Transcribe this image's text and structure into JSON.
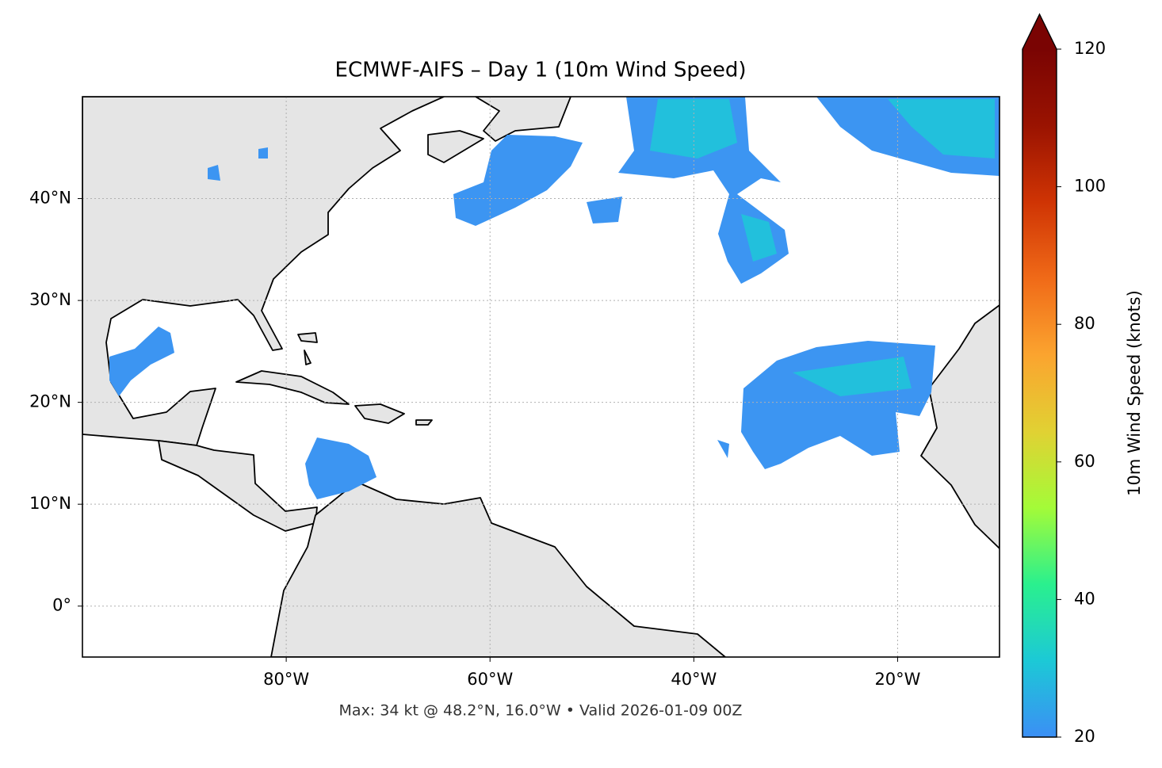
{
  "chart_data": {
    "type": "map",
    "title": "ECMWF-AIFS – Day 1 (10m Wind Speed)",
    "annotation": "Max: 34 kt @ 48.2°N, 16.0°W • Valid 2026-01-09 00Z",
    "xlim": [
      -100,
      -10
    ],
    "ylim": [
      -5,
      50
    ],
    "xticks": [
      {
        "value": -80,
        "label": "80°W"
      },
      {
        "value": -60,
        "label": "60°W"
      },
      {
        "value": -40,
        "label": "40°W"
      },
      {
        "value": -20,
        "label": "20°W"
      }
    ],
    "yticks": [
      {
        "value": 0,
        "label": "0°"
      },
      {
        "value": 10,
        "label": "10°N"
      },
      {
        "value": 20,
        "label": "20°N"
      },
      {
        "value": 30,
        "label": "30°N"
      },
      {
        "value": 40,
        "label": "40°N"
      }
    ],
    "grid": true,
    "colorbar": {
      "label": "10m Wind Speed (knots)",
      "lim": [
        20,
        120
      ],
      "ticks": [
        20,
        40,
        60,
        80,
        100,
        120
      ],
      "colors": [
        "#3b8ff5",
        "#1cc9d6",
        "#2af08e",
        "#a4fb38",
        "#e1d133",
        "#fba42f",
        "#f06a18",
        "#cf3404",
        "#9a1301",
        "#7a0403"
      ]
    }
  }
}
